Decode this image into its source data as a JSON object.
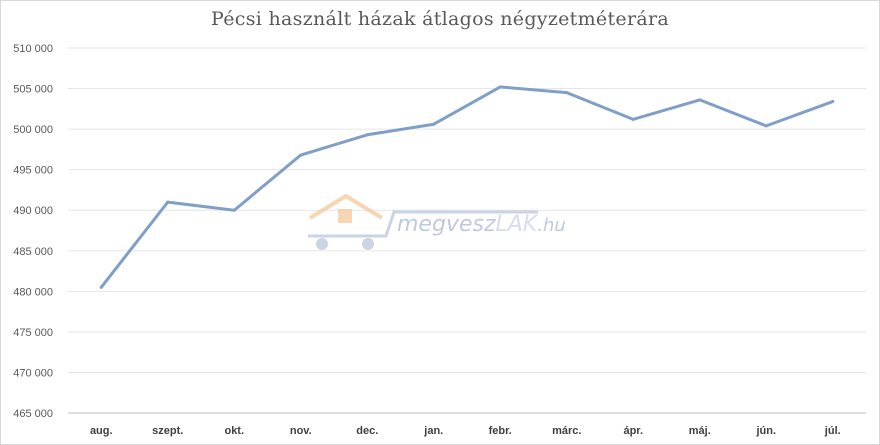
{
  "chart_data": {
    "type": "line",
    "title": "Pécsi használt házak átlagos négyzetméterára",
    "categories": [
      "aug.",
      "szept.",
      "okt.",
      "nov.",
      "dec.",
      "jan.",
      "febr.",
      "márc.",
      "ápr.",
      "máj.",
      "jún.",
      "júl."
    ],
    "series": [
      {
        "values": [
          480500,
          491000,
          490000,
          496800,
          499300,
          500600,
          505200,
          504500,
          501200,
          503600,
          500400,
          503400
        ]
      }
    ],
    "ylim": [
      465000,
      510000
    ],
    "yticks": [
      465000,
      470000,
      475000,
      480000,
      485000,
      490000,
      495000,
      500000,
      505000,
      510000
    ],
    "ytick_labels": [
      "465 000",
      "470 000",
      "475 000",
      "480 000",
      "485 000",
      "490 000",
      "495 000",
      "500 000",
      "505 000",
      "510 000"
    ],
    "xlabel": "",
    "ylabel": "",
    "grid": true,
    "legend": "none",
    "line_color": "#7f9fc8",
    "grid_color": "#e6e6e6"
  },
  "watermark": {
    "brand_part1": "megvesz",
    "brand_part2": "LAK",
    "brand_part3": ".hu",
    "colors": {
      "house": "#f5c99a",
      "cart": "#b7c6dd",
      "text": "#a9b8d3",
      "accent": "#c7d3e8"
    }
  }
}
